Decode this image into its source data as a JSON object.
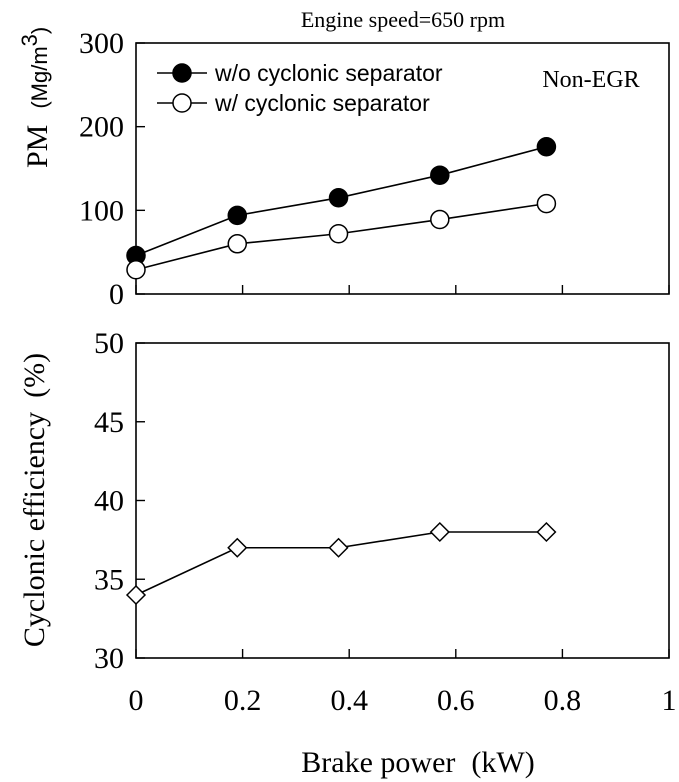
{
  "chart_data": [
    {
      "type": "line",
      "title": "Engine speed=650 rpm",
      "annotation": "Non-EGR",
      "ylabel": "PM",
      "ylabel_unit": "(Mg/m",
      "ylabel_unit_sup": "3",
      "ylabel_unit_close": ")",
      "ylim": [
        0,
        300
      ],
      "yticks": [
        "0",
        "100",
        "200",
        "300"
      ],
      "xlim": [
        0,
        1
      ],
      "grid": false,
      "legend_position": "top-left",
      "x": [
        0,
        0.19,
        0.38,
        0.57,
        0.77
      ],
      "series": [
        {
          "name": "w/o cyclonic separator",
          "marker": "filled-circle",
          "values": [
            46,
            94,
            115,
            142,
            176
          ]
        },
        {
          "name": "w/ cyclonic separator",
          "marker": "open-circle",
          "values": [
            29,
            60,
            72,
            89,
            108
          ]
        }
      ]
    },
    {
      "type": "line",
      "ylabel": "Cyclonic efficiency",
      "ylabel_unit": "(%)",
      "xlabel": "Brake power",
      "xlabel_unit": "(kW)",
      "ylim": [
        30,
        50
      ],
      "yticks": [
        "30",
        "35",
        "40",
        "45",
        "50"
      ],
      "xlim": [
        0,
        1
      ],
      "xticks": [
        "0",
        "0.2",
        "0.4",
        "0.6",
        "0.8",
        "1"
      ],
      "grid": false,
      "x": [
        0,
        0.19,
        0.38,
        0.57,
        0.77
      ],
      "series": [
        {
          "marker": "open-diamond",
          "values": [
            34,
            37,
            37,
            38,
            38
          ]
        }
      ]
    }
  ]
}
